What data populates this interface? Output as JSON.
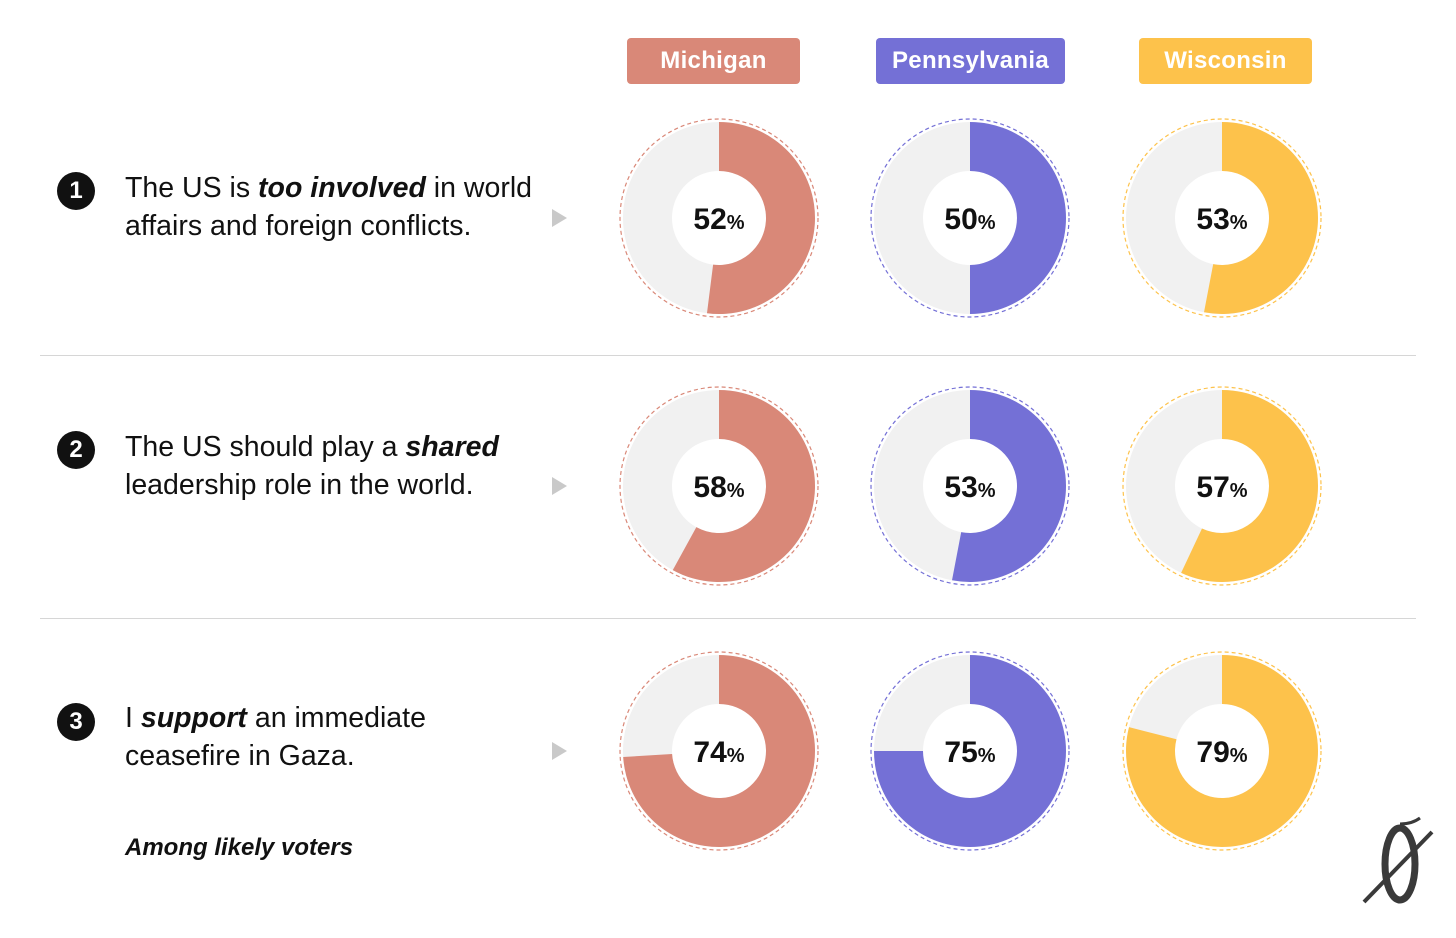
{
  "states": [
    {
      "name": "Michigan",
      "color": "#D98878"
    },
    {
      "name": "Pennsylvania",
      "color": "#7470D6"
    },
    {
      "name": "Wisconsin",
      "color": "#FDC24B"
    }
  ],
  "remainder_color": "#F1F1F1",
  "questions": [
    {
      "number": "1",
      "parts": [
        "The US is ",
        "too involved",
        " in world affairs and foreign conflicts."
      ]
    },
    {
      "number": "2",
      "parts": [
        "The US should play a ",
        "shared",
        " leadership role in the world."
      ]
    },
    {
      "number": "3",
      "parts": [
        "I ",
        "support",
        " an immediate ceasefire in Gaza."
      ]
    }
  ],
  "footnote": "Among likely voters",
  "logo_icon": "slashed-zero-logo-icon",
  "chart_data": {
    "type": "pie",
    "categories": [
      "Michigan",
      "Pennsylvania",
      "Wisconsin"
    ],
    "unit": "%",
    "series": [
      {
        "name": "The US is too involved in world affairs and foreign conflicts.",
        "values": [
          52,
          50,
          53
        ]
      },
      {
        "name": "The US should play a shared leadership role in the world.",
        "values": [
          58,
          53,
          57
        ]
      },
      {
        "name": "I support an immediate ceasefire in Gaza.",
        "values": [
          74,
          75,
          79
        ]
      }
    ]
  }
}
